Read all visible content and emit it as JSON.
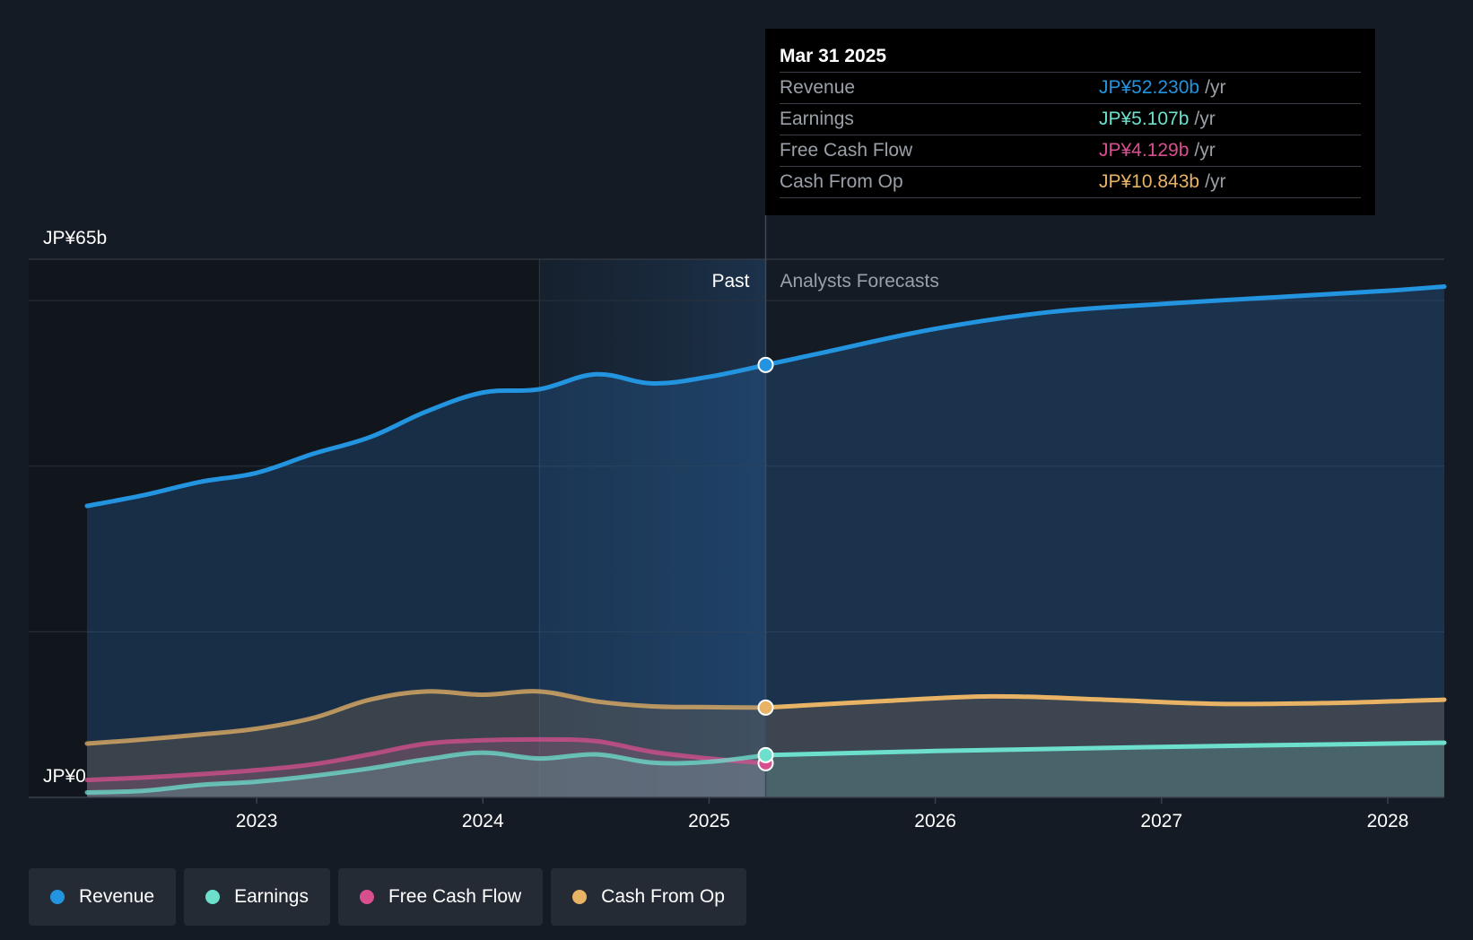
{
  "chart_data": {
    "type": "area",
    "currency": "JP¥",
    "y_unit": "b",
    "ylim": [
      0,
      65
    ],
    "y_axis_labels": [
      "JP¥65b",
      "JP¥0"
    ],
    "x_ticks": [
      "2023",
      "2024",
      "2025",
      "2026",
      "2027",
      "2028"
    ],
    "x_tick_values": [
      2023,
      2024,
      2025,
      2026,
      2027,
      2028
    ],
    "x_range": [
      2022.0,
      2028.25
    ],
    "past_label": "Past",
    "forecast_label": "Analysts Forecasts",
    "past_end": 2025.25,
    "shade_start": 2024.25,
    "series": [
      {
        "name": "Revenue",
        "color": "#2394df",
        "past": [
          [
            2022.25,
            35.2
          ],
          [
            2022.5,
            36.5
          ],
          [
            2022.75,
            38.1
          ],
          [
            2023.0,
            39.2
          ],
          [
            2023.25,
            41.5
          ],
          [
            2023.5,
            43.5
          ],
          [
            2023.75,
            46.6
          ],
          [
            2024.0,
            48.9
          ],
          [
            2024.25,
            49.3
          ],
          [
            2024.5,
            51.1
          ],
          [
            2024.75,
            50.0
          ],
          [
            2025.0,
            50.8
          ],
          [
            2025.25,
            52.23
          ]
        ],
        "forecast": [
          [
            2025.25,
            52.23
          ],
          [
            2025.5,
            53.7
          ],
          [
            2026.0,
            56.6
          ],
          [
            2026.5,
            58.6
          ],
          [
            2027.0,
            59.6
          ],
          [
            2027.5,
            60.4
          ],
          [
            2028.0,
            61.2
          ],
          [
            2028.25,
            61.7
          ]
        ]
      },
      {
        "name": "Earnings",
        "color": "#6de0cd",
        "past": [
          [
            2022.25,
            0.6
          ],
          [
            2022.5,
            0.8
          ],
          [
            2022.75,
            1.5
          ],
          [
            2023.0,
            1.9
          ],
          [
            2023.25,
            2.6
          ],
          [
            2023.5,
            3.5
          ],
          [
            2023.75,
            4.6
          ],
          [
            2024.0,
            5.4
          ],
          [
            2024.25,
            4.7
          ],
          [
            2024.5,
            5.2
          ],
          [
            2024.75,
            4.2
          ],
          [
            2025.0,
            4.3
          ],
          [
            2025.25,
            5.107
          ]
        ],
        "forecast": [
          [
            2025.25,
            5.107
          ],
          [
            2026.0,
            5.6
          ],
          [
            2027.0,
            6.1
          ],
          [
            2028.0,
            6.5
          ],
          [
            2028.25,
            6.6
          ]
        ]
      },
      {
        "name": "Free Cash Flow",
        "color": "#d84f8f",
        "past": [
          [
            2022.25,
            2.1
          ],
          [
            2022.5,
            2.4
          ],
          [
            2022.75,
            2.8
          ],
          [
            2023.0,
            3.3
          ],
          [
            2023.25,
            4.0
          ],
          [
            2023.5,
            5.2
          ],
          [
            2023.75,
            6.5
          ],
          [
            2024.0,
            6.9
          ],
          [
            2024.25,
            7.0
          ],
          [
            2024.5,
            6.8
          ],
          [
            2024.75,
            5.5
          ],
          [
            2025.0,
            4.7
          ],
          [
            2025.25,
            4.129
          ]
        ],
        "forecast": []
      },
      {
        "name": "Cash From Op",
        "color": "#e8b365",
        "past": [
          [
            2022.25,
            6.5
          ],
          [
            2022.5,
            7.0
          ],
          [
            2022.75,
            7.6
          ],
          [
            2023.0,
            8.3
          ],
          [
            2023.25,
            9.6
          ],
          [
            2023.5,
            11.8
          ],
          [
            2023.75,
            12.8
          ],
          [
            2024.0,
            12.4
          ],
          [
            2024.25,
            12.8
          ],
          [
            2024.5,
            11.6
          ],
          [
            2024.75,
            11.0
          ],
          [
            2025.0,
            10.9
          ],
          [
            2025.25,
            10.843
          ]
        ],
        "forecast": [
          [
            2025.25,
            10.843
          ],
          [
            2025.75,
            11.6
          ],
          [
            2026.25,
            12.2
          ],
          [
            2026.75,
            11.8
          ],
          [
            2027.25,
            11.3
          ],
          [
            2027.75,
            11.4
          ],
          [
            2028.25,
            11.8
          ]
        ]
      }
    ]
  },
  "tooltip": {
    "date": "Mar 31 2025",
    "rows": [
      {
        "label": "Revenue",
        "value": "JP¥52.230b",
        "unit": "/yr",
        "color": "#2394df"
      },
      {
        "label": "Earnings",
        "value": "JP¥5.107b",
        "unit": "/yr",
        "color": "#6de0cd"
      },
      {
        "label": "Free Cash Flow",
        "value": "JP¥4.129b",
        "unit": "/yr",
        "color": "#d84f8f"
      },
      {
        "label": "Cash From Op",
        "value": "JP¥10.843b",
        "unit": "/yr",
        "color": "#e8b365"
      }
    ]
  },
  "legend": [
    {
      "label": "Revenue",
      "color": "#2394df"
    },
    {
      "label": "Earnings",
      "color": "#6de0cd"
    },
    {
      "label": "Free Cash Flow",
      "color": "#d84f8f"
    },
    {
      "label": "Cash From Op",
      "color": "#e8b365"
    }
  ]
}
